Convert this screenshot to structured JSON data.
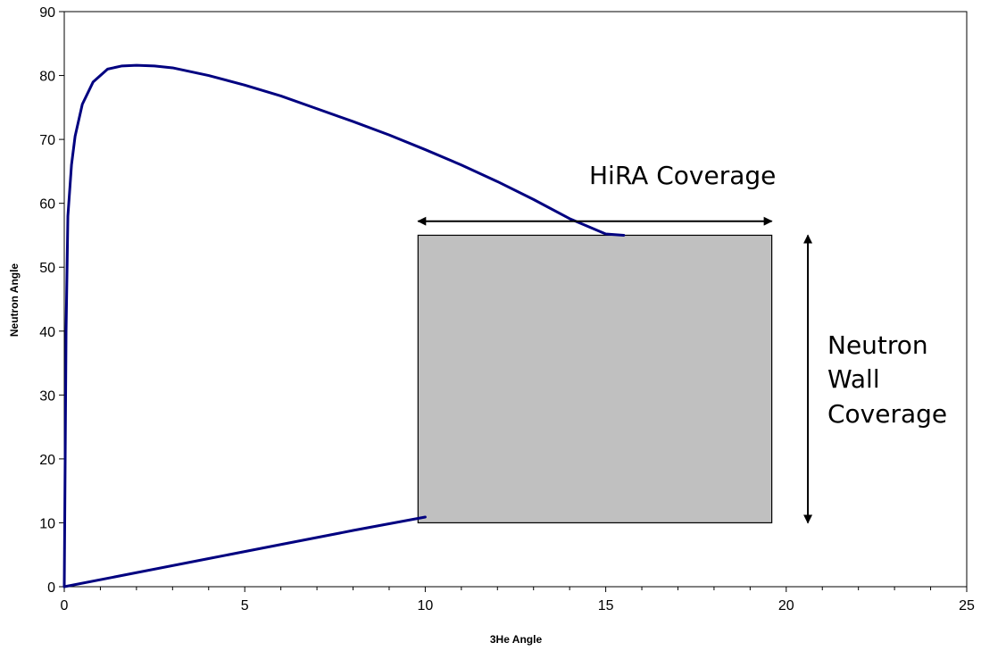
{
  "chart_data": {
    "type": "line",
    "xlabel": "3He Angle",
    "ylabel": "Neutron Angle",
    "xlim": [
      0,
      25
    ],
    "ylim": [
      0,
      90
    ],
    "x_ticks": [
      "0",
      "5",
      "10",
      "15",
      "20",
      "25"
    ],
    "y_ticks": [
      "0",
      "10",
      "20",
      "30",
      "40",
      "50",
      "60",
      "70",
      "80",
      "90"
    ],
    "grid": false,
    "legend": "none",
    "line_color": "#000080",
    "series": [
      {
        "x": [
          0,
          0.05,
          0.1,
          0.2,
          0.3,
          0.5,
          0.8,
          1.2,
          1.6,
          2.0,
          2.5,
          3.0,
          4.0,
          5.0,
          6.0,
          7.0,
          8.0,
          9.0,
          10.0,
          11.0,
          12.0,
          13.0,
          14.0,
          15.0,
          15.5
        ],
        "y": [
          0,
          40,
          58,
          66,
          70.5,
          75.5,
          79,
          81,
          81.5,
          81.6,
          81.5,
          81.2,
          80,
          78.5,
          76.8,
          74.8,
          72.8,
          70.7,
          68.4,
          66,
          63.4,
          60.6,
          57.6,
          55.2,
          55
        ],
        "segment": "upper"
      },
      {
        "x": [
          0,
          2,
          4,
          6,
          8,
          10
        ],
        "y": [
          0,
          2.2,
          4.4,
          6.6,
          8.8,
          10.9
        ],
        "segment": "lower"
      }
    ],
    "shapes": {
      "coverage_box": {
        "x0": 9.8,
        "x1": 19.6,
        "y0": 10,
        "y1": 55,
        "fill": "#C0C0C0"
      },
      "hira_arrow": {
        "x0": 9.8,
        "x1": 19.6,
        "y": 57.2
      },
      "wall_arrow": {
        "x": 20.6,
        "y0": 10,
        "y1": 55
      }
    },
    "annotations": {
      "hira": "HiRA Coverage",
      "wall_line1": "Neutron",
      "wall_line2": "Wall",
      "wall_line3": "Coverage"
    }
  }
}
